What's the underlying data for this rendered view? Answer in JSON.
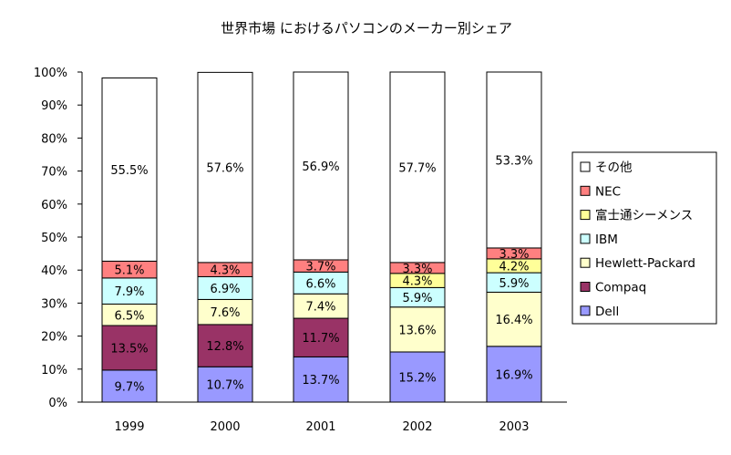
{
  "chart_data": {
    "type": "bar",
    "stacked": true,
    "percent": true,
    "title": "世界市場 におけるパソコンのメーカー別シェア",
    "xlabel": "",
    "ylabel": "",
    "ylim": [
      0,
      100
    ],
    "y_ticks": [
      "0%",
      "10%",
      "20%",
      "30%",
      "40%",
      "50%",
      "60%",
      "70%",
      "80%",
      "90%",
      "100%"
    ],
    "categories": [
      "1999",
      "2000",
      "2001",
      "2002",
      "2003"
    ],
    "grid": false,
    "legend_position": "right",
    "series": [
      {
        "name": "Dell",
        "color": "#9999ff",
        "values": [
          9.7,
          10.7,
          13.7,
          15.2,
          16.9
        ],
        "labels": [
          "9.7%",
          "10.7%",
          "13.7%",
          "15.2%",
          "16.9%"
        ]
      },
      {
        "name": "Compaq",
        "color": "#993366",
        "values": [
          13.5,
          12.8,
          11.7,
          0,
          0
        ],
        "labels": [
          "13.5%",
          "12.8%",
          "11.7%",
          "",
          ""
        ]
      },
      {
        "name": "Hewlett-Packard",
        "color": "#ffffcc",
        "values": [
          6.5,
          7.6,
          7.4,
          13.6,
          16.4
        ],
        "labels": [
          "6.5%",
          "7.6%",
          "7.4%",
          "13.6%",
          "16.4%"
        ]
      },
      {
        "name": "IBM",
        "color": "#ccffff",
        "values": [
          7.9,
          6.9,
          6.6,
          5.9,
          5.9
        ],
        "labels": [
          "7.9%",
          "6.9%",
          "6.6%",
          "5.9%",
          "5.9%"
        ]
      },
      {
        "name": "富士通シーメンス",
        "color": "#ffff99",
        "values": [
          0,
          0,
          0,
          4.3,
          4.2
        ],
        "labels": [
          "",
          "",
          "",
          "4.3%",
          "4.2%"
        ]
      },
      {
        "name": "NEC",
        "color": "#ff8080",
        "values": [
          5.1,
          4.3,
          3.7,
          3.3,
          3.3
        ],
        "labels": [
          "5.1%",
          "4.3%",
          "3.7%",
          "3.3%",
          "3.3%"
        ]
      },
      {
        "name": "その他",
        "color": "#ffffff",
        "values": [
          55.5,
          57.6,
          56.9,
          57.7,
          53.3
        ],
        "labels": [
          "55.5%",
          "57.6%",
          "56.9%",
          "57.7%",
          "53.3%"
        ]
      }
    ],
    "legend_order": [
      "その他",
      "NEC",
      "富士通シーメンス",
      "IBM",
      "Hewlett-Packard",
      "Compaq",
      "Dell"
    ]
  }
}
